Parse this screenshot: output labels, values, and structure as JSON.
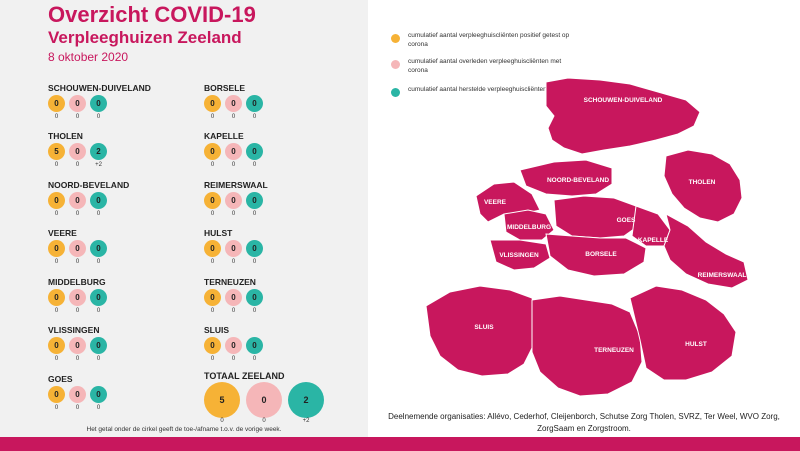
{
  "header": {
    "title": "Overzicht COVID-19",
    "subtitle": "Verpleeghuizen Zeeland",
    "date": "8 oktober 2020"
  },
  "colors": {
    "accent": "#c8175d",
    "positive": "#f6b236",
    "deceased": "#f5b6b8",
    "recovered": "#2ab5a5"
  },
  "regions": [
    {
      "name": "SCHOUWEN-DUIVELAND",
      "positive": "0",
      "deceased": "0",
      "recovered": "0",
      "d_positive": "0",
      "d_deceased": "0",
      "d_recovered": "0"
    },
    {
      "name": "THOLEN",
      "positive": "5",
      "deceased": "0",
      "recovered": "2",
      "d_positive": "0",
      "d_deceased": "0",
      "d_recovered": "+2"
    },
    {
      "name": "NOORD-BEVELAND",
      "positive": "0",
      "deceased": "0",
      "recovered": "0",
      "d_positive": "0",
      "d_deceased": "0",
      "d_recovered": "0"
    },
    {
      "name": "VEERE",
      "positive": "0",
      "deceased": "0",
      "recovered": "0",
      "d_positive": "0",
      "d_deceased": "0",
      "d_recovered": "0"
    },
    {
      "name": "MIDDELBURG",
      "positive": "0",
      "deceased": "0",
      "recovered": "0",
      "d_positive": "0",
      "d_deceased": "0",
      "d_recovered": "0"
    },
    {
      "name": "VLISSINGEN",
      "positive": "0",
      "deceased": "0",
      "recovered": "0",
      "d_positive": "0",
      "d_deceased": "0",
      "d_recovered": "0"
    },
    {
      "name": "GOES",
      "positive": "0",
      "deceased": "0",
      "recovered": "0",
      "d_positive": "0",
      "d_deceased": "0",
      "d_recovered": "0"
    },
    {
      "name": "BORSELE",
      "positive": "0",
      "deceased": "0",
      "recovered": "0",
      "d_positive": "0",
      "d_deceased": "0",
      "d_recovered": "0"
    },
    {
      "name": "KAPELLE",
      "positive": "0",
      "deceased": "0",
      "recovered": "0",
      "d_positive": "0",
      "d_deceased": "0",
      "d_recovered": "0"
    },
    {
      "name": "REIMERSWAAL",
      "positive": "0",
      "deceased": "0",
      "recovered": "0",
      "d_positive": "0",
      "d_deceased": "0",
      "d_recovered": "0"
    },
    {
      "name": "HULST",
      "positive": "0",
      "deceased": "0",
      "recovered": "0",
      "d_positive": "0",
      "d_deceased": "0",
      "d_recovered": "0"
    },
    {
      "name": "TERNEUZEN",
      "positive": "0",
      "deceased": "0",
      "recovered": "0",
      "d_positive": "0",
      "d_deceased": "0",
      "d_recovered": "0"
    },
    {
      "name": "SLUIS",
      "positive": "0",
      "deceased": "0",
      "recovered": "0",
      "d_positive": "0",
      "d_deceased": "0",
      "d_recovered": "0"
    }
  ],
  "totaal": {
    "name": "TOTAAL ZEELAND",
    "positive": "5",
    "deceased": "0",
    "recovered": "2",
    "d_positive": "0",
    "d_deceased": "0",
    "d_recovered": "+2"
  },
  "footnote": "Het getal onder de cirkel geeft de toe-/afname t.o.v. de vorige week.",
  "legend": [
    {
      "text": "cumulatief aantal verpleeghuiscliënten positief getest op corona",
      "icon": "orange-dot-icon"
    },
    {
      "text": "cumulatief aantal overleden verpleeghuiscliënten met corona",
      "icon": "pink-dot-icon"
    },
    {
      "text": "cumulatief aantal herstelde verpleeghuiscliënten",
      "icon": "teal-dot-icon"
    }
  ],
  "map_labels": {
    "schouwen": "SCHOUWEN-DUIVELAND",
    "tholen": "THOLEN",
    "noord_beveland": "NOORD-BEVELAND",
    "veere": "VEERE",
    "goes": "GOES",
    "middelburg": "MIDDELBURG",
    "kapelle": "KAPELLE",
    "borsele": "BORSELE",
    "vlissingen": "VLISSINGEN",
    "reimerswaal": "REIMERSWAAL",
    "sluis": "SLUIS",
    "terneuzen": "TERNEUZEN",
    "hulst": "HULST"
  },
  "organisations": {
    "line1": "Deelnemende organisaties: Allévo, Cederhof, Cleijenborch, Schutse Zorg Tholen, SVRZ, Ter Weel, WVO Zorg,",
    "line2": "ZorgSaam en Zorgstroom."
  }
}
